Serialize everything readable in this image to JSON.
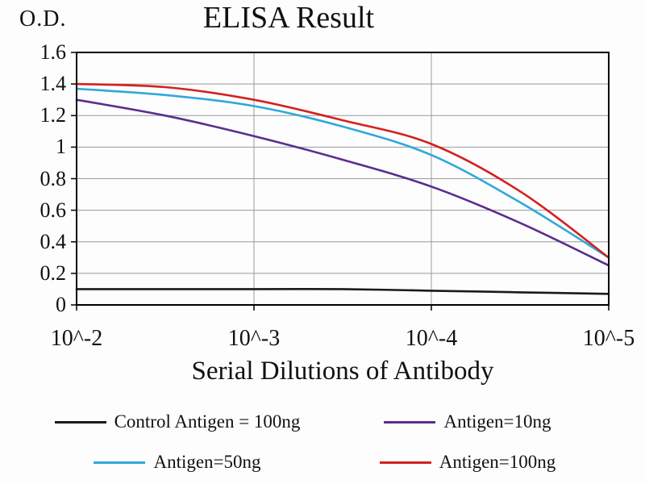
{
  "header": {
    "y_axis_unit": "O.D.",
    "title": "ELISA Result"
  },
  "chart_data": {
    "type": "line",
    "title": "ELISA Result",
    "xlabel": "Serial Dilutions of Antibody",
    "ylabel": "O.D.",
    "x_tick_labels": [
      "10^-2",
      "10^-3",
      "10^-4",
      "10^-5"
    ],
    "x": [
      0,
      0.5,
      1,
      1.5,
      2,
      2.5,
      3
    ],
    "ylim": [
      0,
      1.6
    ],
    "y_ticks": [
      0,
      0.2,
      0.4,
      0.6,
      0.8,
      1,
      1.2,
      1.4,
      1.6
    ],
    "grid": true,
    "legend_position": "bottom",
    "series": [
      {
        "name": "Control Antigen = 100ng",
        "color": "#1a1a1a",
        "values": [
          0.1,
          0.1,
          0.1,
          0.1,
          0.09,
          0.08,
          0.07
        ]
      },
      {
        "name": "Antigen=10ng",
        "color": "#5b2d8e",
        "values": [
          1.3,
          1.2,
          1.07,
          0.92,
          0.75,
          0.52,
          0.25
        ]
      },
      {
        "name": "Antigen=50ng",
        "color": "#2fa8dc",
        "values": [
          1.37,
          1.33,
          1.26,
          1.13,
          0.95,
          0.65,
          0.3
        ]
      },
      {
        "name": "Antigen=100ng",
        "color": "#d42020",
        "values": [
          1.4,
          1.38,
          1.3,
          1.17,
          1.02,
          0.72,
          0.3
        ]
      }
    ]
  }
}
